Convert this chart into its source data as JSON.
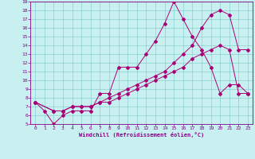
{
  "xlabel": "Windchill (Refroidissement éolien,°C)",
  "bg_color": "#c8f0f0",
  "line_color": "#aa0077",
  "grid_color": "#7ac8c8",
  "axis_color": "#880088",
  "xlim": [
    -0.5,
    23.5
  ],
  "ylim": [
    5,
    19
  ],
  "xticks": [
    0,
    1,
    2,
    3,
    4,
    5,
    6,
    7,
    8,
    9,
    10,
    11,
    12,
    13,
    14,
    15,
    16,
    17,
    18,
    19,
    20,
    21,
    22,
    23
  ],
  "yticks": [
    5,
    6,
    7,
    8,
    9,
    10,
    11,
    12,
    13,
    14,
    15,
    16,
    17,
    18,
    19
  ],
  "line1_x": [
    0,
    1,
    2,
    3,
    4,
    5,
    6,
    7,
    8,
    9,
    10,
    11,
    12,
    13,
    14,
    15,
    16,
    17,
    18,
    19,
    20,
    21,
    22,
    23
  ],
  "line1_y": [
    7.5,
    6.5,
    5.0,
    6.0,
    6.5,
    6.5,
    6.5,
    8.5,
    8.5,
    11.5,
    11.5,
    11.5,
    13.0,
    14.5,
    16.5,
    19.0,
    17.0,
    15.0,
    13.5,
    11.5,
    8.5,
    9.5,
    9.5,
    8.5
  ],
  "line2_x": [
    0,
    2,
    3,
    4,
    5,
    6,
    7,
    8,
    9,
    10,
    11,
    12,
    13,
    14,
    15,
    16,
    17,
    18,
    19,
    20,
    21,
    22,
    23
  ],
  "line2_y": [
    7.5,
    6.5,
    6.5,
    7.0,
    7.0,
    7.0,
    7.5,
    8.0,
    8.5,
    9.0,
    9.5,
    10.0,
    10.5,
    11.0,
    12.0,
    13.0,
    14.0,
    16.0,
    17.5,
    18.0,
    17.5,
    13.5,
    13.5
  ],
  "line3_x": [
    0,
    2,
    3,
    4,
    5,
    6,
    7,
    8,
    9,
    10,
    11,
    12,
    13,
    14,
    15,
    16,
    17,
    18,
    19,
    20,
    21,
    22,
    23
  ],
  "line3_y": [
    7.5,
    6.5,
    6.5,
    7.0,
    7.0,
    7.0,
    7.5,
    7.5,
    8.0,
    8.5,
    9.0,
    9.5,
    10.0,
    10.5,
    11.0,
    11.5,
    12.5,
    13.0,
    13.5,
    14.0,
    13.5,
    8.5,
    8.5
  ]
}
